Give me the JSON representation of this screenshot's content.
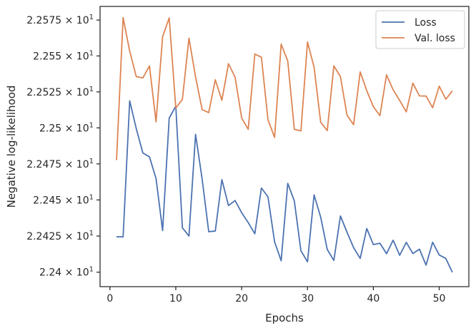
{
  "chart_data": {
    "type": "line",
    "title": "",
    "xlabel": "Epochs",
    "ylabel": "Negative log-likelihood",
    "yscale": "log",
    "xlim": [
      -1.5,
      54.5
    ],
    "ylim": [
      22.39,
      22.5845
    ],
    "xticks": [
      0,
      10,
      20,
      30,
      40,
      50
    ],
    "yticks": [
      {
        "value": 22.4,
        "mantissa": "2.24"
      },
      {
        "value": 22.425,
        "mantissa": "2.2425"
      },
      {
        "value": 22.45,
        "mantissa": "2.245"
      },
      {
        "value": 22.475,
        "mantissa": "2.2475"
      },
      {
        "value": 22.5,
        "mantissa": "2.25"
      },
      {
        "value": 22.525,
        "mantissa": "2.2525"
      },
      {
        "value": 22.55,
        "mantissa": "2.255"
      },
      {
        "value": 22.575,
        "mantissa": "2.2575"
      }
    ],
    "ytick_suffix": "× 10",
    "ytick_exponent": "1",
    "grid": false,
    "legend_position": "top-right",
    "x": [
      1,
      2,
      3,
      4,
      5,
      6,
      7,
      8,
      9,
      10,
      11,
      12,
      13,
      14,
      15,
      16,
      17,
      18,
      19,
      20,
      21,
      22,
      23,
      24,
      25,
      26,
      27,
      28,
      29,
      30,
      31,
      32,
      33,
      34,
      35,
      36,
      37,
      38,
      39,
      40,
      41,
      42,
      43,
      44,
      45,
      46,
      47,
      48,
      49,
      50,
      51,
      52
    ],
    "series": [
      {
        "name": "Loss",
        "color": "#4c72b0",
        "values": [
          22.4245,
          22.4244,
          22.5188,
          22.4994,
          22.4826,
          22.4799,
          22.4649,
          22.4288,
          22.5068,
          22.5151,
          22.4307,
          22.425,
          22.4955,
          22.4645,
          22.428,
          22.4285,
          22.4641,
          22.4461,
          22.4496,
          22.4412,
          22.4343,
          22.4266,
          22.4583,
          22.4521,
          22.421,
          22.4079,
          22.4615,
          22.4493,
          22.4148,
          22.4072,
          22.4535,
          22.4381,
          22.4157,
          22.4081,
          22.4389,
          22.4276,
          22.417,
          22.4095,
          22.4302,
          22.4191,
          22.42,
          22.4128,
          22.4221,
          22.4117,
          22.4206,
          22.4129,
          22.4159,
          22.4049,
          22.4207,
          22.4119,
          22.4095,
          22.3999
        ]
      },
      {
        "name": "Val. loss",
        "color": "#dd8452",
        "values": [
          22.4776,
          22.5767,
          22.5533,
          22.5356,
          22.5347,
          22.5431,
          22.5042,
          22.5635,
          22.5765,
          22.5138,
          22.5197,
          22.5624,
          22.5354,
          22.5127,
          22.5106,
          22.5334,
          22.5192,
          22.5446,
          22.5353,
          22.5069,
          22.499,
          22.5513,
          22.5491,
          22.5056,
          22.4934,
          22.5582,
          22.5465,
          22.499,
          22.4979,
          22.5597,
          22.5421,
          22.5039,
          22.4981,
          22.5431,
          22.5356,
          22.5088,
          22.5022,
          22.5389,
          22.5258,
          22.5147,
          22.5085,
          22.5368,
          22.5265,
          22.519,
          22.5111,
          22.5311,
          22.5222,
          22.5221,
          22.514,
          22.529,
          22.5199,
          22.5257
        ]
      }
    ]
  }
}
